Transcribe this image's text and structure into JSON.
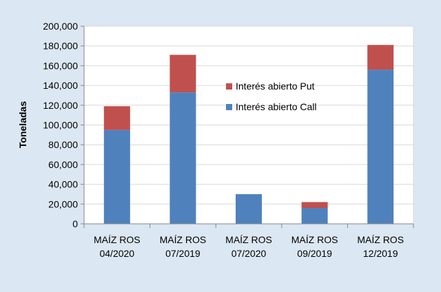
{
  "chart_data": {
    "type": "bar",
    "stacked": true,
    "ylabel": "Toneladas",
    "xlabel": "",
    "ylim": [
      0,
      200000
    ],
    "yticks": [
      0,
      20000,
      40000,
      60000,
      80000,
      100000,
      120000,
      140000,
      160000,
      180000,
      200000
    ],
    "ytick_labels": [
      "0",
      "20,000",
      "40,000",
      "60,000",
      "80,000",
      "100,000",
      "120,000",
      "140,000",
      "160,000",
      "180,000",
      "200,000"
    ],
    "categories": [
      [
        "MAÍZ ROS",
        "04/2020"
      ],
      [
        "MAÍZ ROS",
        "07/2019"
      ],
      [
        "MAÍZ ROS",
        "07/2020"
      ],
      [
        "MAÍZ ROS",
        "09/2019"
      ],
      [
        "MAÍZ ROS",
        "12/2019"
      ]
    ],
    "series": [
      {
        "name": "Interés abierto Call",
        "color": "#4f81bd",
        "values": [
          95000,
          133000,
          30000,
          16000,
          156000
        ]
      },
      {
        "name": "Interés abierto Put",
        "color": "#c0504d",
        "values": [
          24000,
          38000,
          0,
          6000,
          25000
        ]
      }
    ],
    "legend": {
      "placement": "center",
      "order": [
        "Interés abierto Put",
        "Interés abierto Call"
      ]
    },
    "grid": true,
    "colors": {
      "background": "#dbe7f2",
      "plot_area": "#ffffff",
      "grid": "#d9d9d9",
      "axis": "#868686"
    }
  }
}
